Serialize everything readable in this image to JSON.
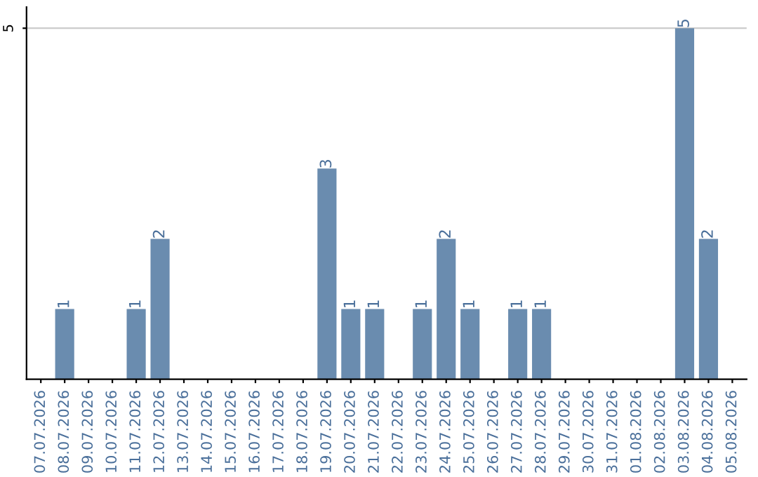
{
  "chart_data": {
    "type": "bar",
    "categories": [
      "07.07.2026",
      "08.07.2026",
      "09.07.2026",
      "10.07.2026",
      "11.07.2026",
      "12.07.2026",
      "13.07.2026",
      "14.07.2026",
      "15.07.2026",
      "16.07.2026",
      "17.07.2026",
      "18.07.2026",
      "19.07.2026",
      "20.07.2026",
      "21.07.2026",
      "22.07.2026",
      "23.07.2026",
      "24.07.2026",
      "25.07.2026",
      "26.07.2026",
      "27.07.2026",
      "28.07.2026",
      "29.07.2026",
      "30.07.2026",
      "31.07.2026",
      "01.08.2026",
      "02.08.2026",
      "03.08.2026",
      "04.08.2026",
      "05.08.2026"
    ],
    "values": [
      0,
      1,
      0,
      0,
      1,
      2,
      0,
      0,
      0,
      0,
      0,
      0,
      3,
      1,
      1,
      0,
      1,
      2,
      1,
      0,
      1,
      1,
      0,
      0,
      0,
      0,
      0,
      5,
      2,
      0
    ],
    "value_labels": [
      null,
      "1",
      null,
      null,
      "1",
      "2",
      null,
      null,
      null,
      null,
      null,
      null,
      "3",
      "1",
      "1",
      null,
      "1",
      "2",
      "1",
      null,
      "1",
      "1",
      null,
      null,
      null,
      null,
      null,
      "5",
      "2",
      null
    ],
    "color": "#6a8caf",
    "ylim": [
      0,
      5.3
    ],
    "yticks": [
      5
    ],
    "grid": "y",
    "legend": false
  }
}
